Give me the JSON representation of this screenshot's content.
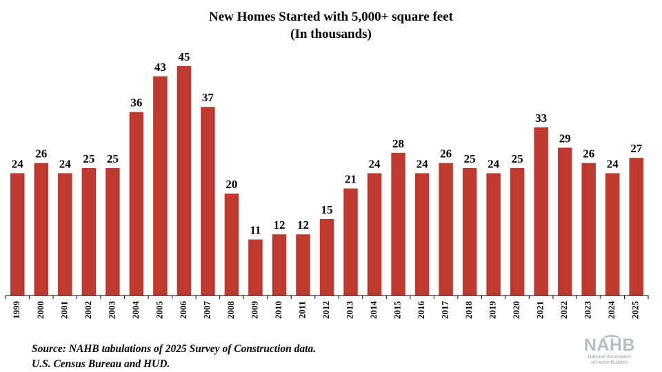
{
  "chart_data": {
    "type": "bar",
    "title": "New Homes Started with 5,000+ square feet",
    "subtitle": "(In thousands)",
    "categories": [
      "1999",
      "2000",
      "2001",
      "2002",
      "2003",
      "2004",
      "2005",
      "2006",
      "2007",
      "2008",
      "2009",
      "2010",
      "2011",
      "2012",
      "2013",
      "2014",
      "2015",
      "2016",
      "2017",
      "2018",
      "2019",
      "2020",
      "2021",
      "2022",
      "2023",
      "2024",
      "2025"
    ],
    "series": [
      {
        "values": [
          24,
          26,
          24,
          25,
          25,
          36,
          43,
          45,
          37,
          20,
          11,
          12,
          12,
          15,
          21,
          24,
          28,
          24,
          26,
          25,
          24,
          25,
          33,
          29,
          26,
          24,
          27
        ]
      }
    ],
    "data_labels": true,
    "ylim": [
      0,
      50
    ],
    "grid": false,
    "colors": {
      "bar": "#c0392f",
      "axis": "#000000",
      "logo": "#b8bcc4"
    }
  },
  "footer": {
    "source_line1": "Source: NAHB tabulations of 2025 Survey of Construction data.",
    "source_line2": "U.S. Census Bureau and HUD."
  },
  "logo": {
    "word": "NAHB",
    "sub_line1": "National Association",
    "sub_line2": "of Home Builders"
  }
}
